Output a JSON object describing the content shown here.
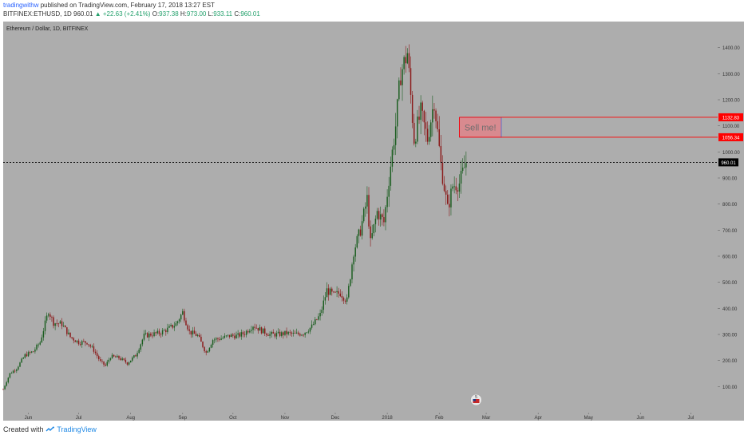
{
  "header": {
    "author": "tradingwithw",
    "published_text": "published on TradingView.com, February 17, 2018 13:27 EST",
    "symbol": "BITFINEX:ETHUSD, 1D",
    "last": "960.01",
    "change": "▲ +22.63 (+2.41%)",
    "ohlc_o_label": "O:",
    "ohlc_o": "937.38",
    "ohlc_h_label": "H:",
    "ohlc_h": "973.00",
    "ohlc_l_label": "L:",
    "ohlc_l": "933.11",
    "ohlc_c_label": "C:",
    "ohlc_c": "960.01"
  },
  "footer": {
    "created_with": "Created with",
    "brand": "TradingView"
  },
  "colors": {
    "plot_bg": "#adadad",
    "up": "#1b5e20",
    "down": "#8b1a1a",
    "zone_fill": "#d88a8f",
    "zone_line": "#ff0000",
    "zone_inner_border": "#4a5fd0",
    "price_line": "#000000",
    "axis_text": "#333333"
  },
  "chart_data": {
    "type": "candlestick",
    "title": "Ethereum / Dollar, 1D, BITFINEX",
    "x_tick_labels": [
      "Jun",
      "Jul",
      "Aug",
      "Sep",
      "Oct",
      "Nov",
      "Dec",
      "2018",
      "Feb",
      "Mar",
      "Apr",
      "May",
      "Jun",
      "Jul"
    ],
    "y_tick_labels": [
      "100.00",
      "200.00",
      "300.00",
      "400.00",
      "500.00",
      "600.00",
      "700.00",
      "800.00",
      "900.00",
      "1000.00",
      "1100.00",
      "1200.00",
      "1300.00",
      "1400.00"
    ],
    "y_ticks": [
      100,
      200,
      300,
      400,
      500,
      600,
      700,
      800,
      900,
      1000,
      1100,
      1200,
      1300,
      1400
    ],
    "ylim": [
      0,
      1500
    ],
    "x_start": "2017-05-17",
    "x_end": "2018-07-17",
    "date_ticks": [
      "2017-06-01",
      "2017-07-01",
      "2017-08-01",
      "2017-09-01",
      "2017-10-01",
      "2017-11-01",
      "2017-12-01",
      "2018-01-01",
      "2018-02-01",
      "2018-03-01",
      "2018-04-01",
      "2018-05-01",
      "2018-06-01",
      "2018-07-01"
    ],
    "closes": [
      [
        "2017-05-17",
        90
      ],
      [
        "2017-05-21",
        150
      ],
      [
        "2017-05-25",
        170
      ],
      [
        "2017-05-30",
        220
      ],
      [
        "2017-06-04",
        235
      ],
      [
        "2017-06-08",
        270
      ],
      [
        "2017-06-13",
        390
      ],
      [
        "2017-06-16",
        345
      ],
      [
        "2017-06-21",
        340
      ],
      [
        "2017-06-26",
        290
      ],
      [
        "2017-07-01",
        270
      ],
      [
        "2017-07-06",
        270
      ],
      [
        "2017-07-10",
        240
      ],
      [
        "2017-07-14",
        195
      ],
      [
        "2017-07-17",
        180
      ],
      [
        "2017-07-20",
        215
      ],
      [
        "2017-07-25",
        210
      ],
      [
        "2017-07-30",
        190
      ],
      [
        "2017-08-04",
        220
      ],
      [
        "2017-08-09",
        295
      ],
      [
        "2017-08-13",
        300
      ],
      [
        "2017-08-18",
        305
      ],
      [
        "2017-08-23",
        320
      ],
      [
        "2017-08-28",
        340
      ],
      [
        "2017-09-01",
        385
      ],
      [
        "2017-09-05",
        310
      ],
      [
        "2017-09-10",
        295
      ],
      [
        "2017-09-15",
        230
      ],
      [
        "2017-09-19",
        280
      ],
      [
        "2017-09-24",
        285
      ],
      [
        "2017-09-29",
        295
      ],
      [
        "2017-10-04",
        295
      ],
      [
        "2017-10-08",
        305
      ],
      [
        "2017-10-13",
        335
      ],
      [
        "2017-10-18",
        315
      ],
      [
        "2017-10-23",
        300
      ],
      [
        "2017-10-28",
        300
      ],
      [
        "2017-11-02",
        305
      ],
      [
        "2017-11-07",
        300
      ],
      [
        "2017-11-12",
        305
      ],
      [
        "2017-11-17",
        330
      ],
      [
        "2017-11-22",
        375
      ],
      [
        "2017-11-26",
        470
      ],
      [
        "2017-11-30",
        450
      ],
      [
        "2017-12-04",
        460
      ],
      [
        "2017-12-08",
        430
      ],
      [
        "2017-12-12",
        620
      ],
      [
        "2017-12-16",
        700
      ],
      [
        "2017-12-20",
        820
      ],
      [
        "2017-12-22",
        650
      ],
      [
        "2017-12-26",
        770
      ],
      [
        "2017-12-30",
        730
      ],
      [
        "2018-01-03",
        950
      ],
      [
        "2018-01-06",
        1100
      ],
      [
        "2018-01-09",
        1300
      ],
      [
        "2018-01-13",
        1380
      ],
      [
        "2018-01-17",
        1050
      ],
      [
        "2018-01-21",
        1150
      ],
      [
        "2018-01-25",
        1050
      ],
      [
        "2018-01-29",
        1200
      ],
      [
        "2018-02-02",
        950
      ],
      [
        "2018-02-06",
        780
      ],
      [
        "2018-02-09",
        870
      ],
      [
        "2018-02-13",
        880
      ],
      [
        "2018-02-17",
        960
      ]
    ],
    "price_line": {
      "value": 960.01,
      "label": "960.01"
    },
    "zone": {
      "top": 1132.83,
      "bottom": 1056.34,
      "top_label": "1132.83",
      "bottom_label": "1056.34",
      "text": "Sell me!",
      "box_start": "2018-02-13",
      "box_end": "2018-03-10"
    },
    "event_badge": "5"
  }
}
